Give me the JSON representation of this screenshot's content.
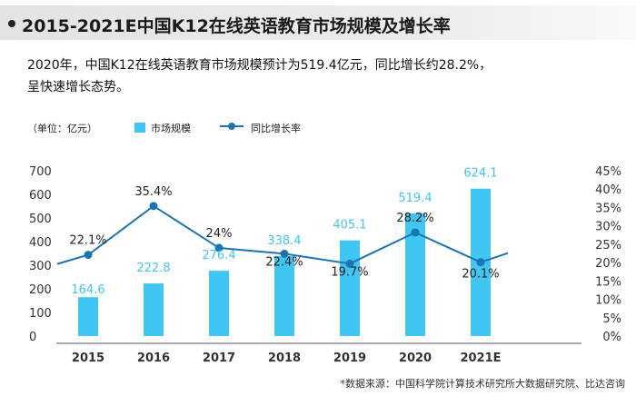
{
  "header": {
    "title": "2015-2021E中国K12在线英语教育市场规模及增长率"
  },
  "subtitle": {
    "line1": "2020年，中国K12在线英语教育市场规模预计为519.4亿元，同比增长约28.2%，",
    "line2": "呈快速增长态势。"
  },
  "legend": {
    "unit": "（单位：亿元）",
    "bar_series": "市场规模",
    "line_series": "同比增长率"
  },
  "source": "*数据来源：中国科学院计算技术研究所大数据研究院、比达咨询",
  "colors": {
    "bar": "#3fc6f3",
    "bar_label": "#3fc6f3",
    "line": "#1b75b3",
    "axis_text": "#333333"
  },
  "chart_data": {
    "type": "bar",
    "categories": [
      "2015",
      "2016",
      "2017",
      "2018",
      "2019",
      "2020",
      "2021E"
    ],
    "series": [
      {
        "name": "市场规模",
        "type": "bar",
        "axis": "left",
        "values": [
          164.6,
          222.8,
          276.4,
          338.4,
          405.1,
          519.4,
          624.1
        ],
        "labels": [
          "164.6",
          "222.8",
          "276.4",
          "338.4",
          "405.1",
          "519.4",
          "624.1"
        ]
      },
      {
        "name": "同比增长率",
        "type": "line",
        "axis": "right",
        "values": [
          22.1,
          35.4,
          24,
          22.4,
          19.7,
          28.2,
          20.1
        ],
        "labels": [
          "22.1%",
          "35.4%",
          "24%",
          "22.4%",
          "19.7%",
          "28.2%",
          "20.1%"
        ]
      }
    ],
    "left_axis": {
      "range": [
        0,
        700
      ],
      "ticks": [
        "0",
        "100",
        "200",
        "300",
        "400",
        "500",
        "600",
        "700"
      ]
    },
    "right_axis": {
      "range": [
        0,
        45
      ],
      "ticks": [
        "0%",
        "5%",
        "10%",
        "15%",
        "20%",
        "25%",
        "30%",
        "35%",
        "40%",
        "45%"
      ]
    },
    "grid": false
  }
}
